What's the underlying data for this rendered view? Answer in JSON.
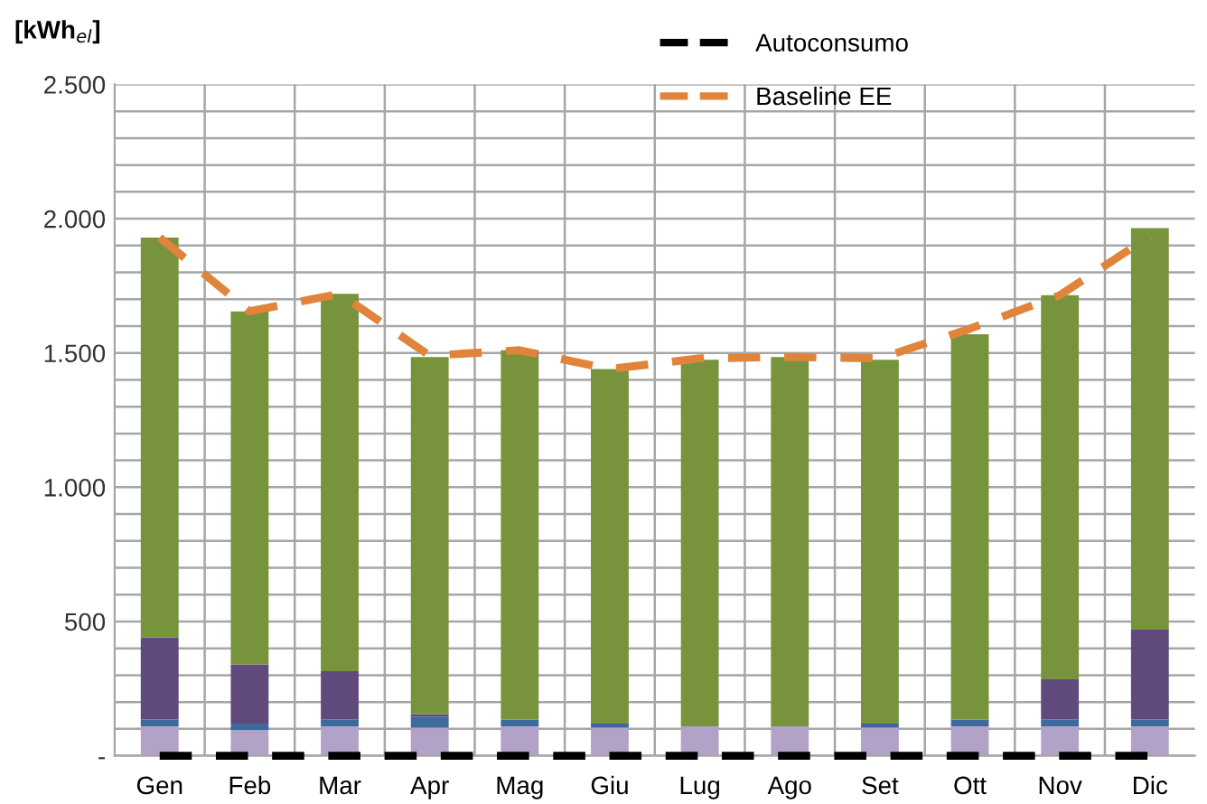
{
  "chart_data": {
    "type": "bar",
    "stacked": true,
    "ylabel": "[kWh$_{el}$]",
    "categories": [
      "Gen",
      "Feb",
      "Mar",
      "Apr",
      "Mag",
      "Giu",
      "Lug",
      "Ago",
      "Set",
      "Ott",
      "Nov",
      "Dic"
    ],
    "series": [
      {
        "color": "#b3a2c7",
        "values": [
          110,
          95,
          110,
          105,
          110,
          105,
          110,
          110,
          105,
          110,
          110,
          110
        ]
      },
      {
        "color": "#3c6a9c",
        "values": [
          25,
          25,
          25,
          40,
          25,
          15,
          0,
          0,
          15,
          25,
          25,
          25
        ]
      },
      {
        "color": "#604a7b",
        "values": [
          305,
          220,
          180,
          10,
          0,
          0,
          0,
          0,
          0,
          0,
          150,
          335
        ]
      },
      {
        "color": "#77933c",
        "values": [
          1490,
          1315,
          1405,
          1330,
          1375,
          1320,
          1365,
          1375,
          1355,
          1435,
          1430,
          1495
        ]
      },
      {
        "type": "line",
        "name": "Autoconsumo",
        "color": "#000000",
        "line_style": "dashed",
        "values": [
          0,
          0,
          0,
          0,
          0,
          0,
          0,
          0,
          0,
          0,
          0,
          0
        ]
      },
      {
        "type": "line",
        "name": "Baseline EE",
        "color": "#e0843c",
        "line_style": "dashed",
        "values": [
          1930,
          1655,
          1720,
          1490,
          1510,
          1440,
          1480,
          1485,
          1480,
          1590,
          1715,
          1935
        ]
      }
    ],
    "ylim": [
      0,
      2500
    ],
    "yticks": [
      {
        "value": 0,
        "label": "-"
      },
      {
        "value": 100,
        "label": null
      },
      {
        "value": 200,
        "label": null
      },
      {
        "value": 300,
        "label": null
      },
      {
        "value": 400,
        "label": null
      },
      500,
      {
        "value": 600,
        "label": null
      },
      {
        "value": 700,
        "label": null
      },
      {
        "value": 800,
        "label": null
      },
      {
        "value": 900,
        "label": null
      },
      {
        "value": 1000,
        "label": "1.000"
      },
      {
        "value": 1100,
        "label": null
      },
      {
        "value": 1200,
        "label": null
      },
      {
        "value": 1300,
        "label": null
      },
      {
        "value": 1400,
        "label": null
      },
      {
        "value": 1500,
        "label": "1.500"
      },
      {
        "value": 1600,
        "label": null
      },
      {
        "value": 1700,
        "label": null
      },
      {
        "value": 1800,
        "label": null
      },
      {
        "value": 1900,
        "label": null
      },
      {
        "value": 2000,
        "label": "2.000"
      },
      {
        "value": 2100,
        "label": null
      },
      {
        "value": 2200,
        "label": null
      },
      {
        "value": 2300,
        "label": null
      },
      {
        "value": 2400,
        "label": null
      },
      {
        "value": 2500,
        "label": "2.500"
      }
    ],
    "grid": true,
    "legend": "top"
  }
}
